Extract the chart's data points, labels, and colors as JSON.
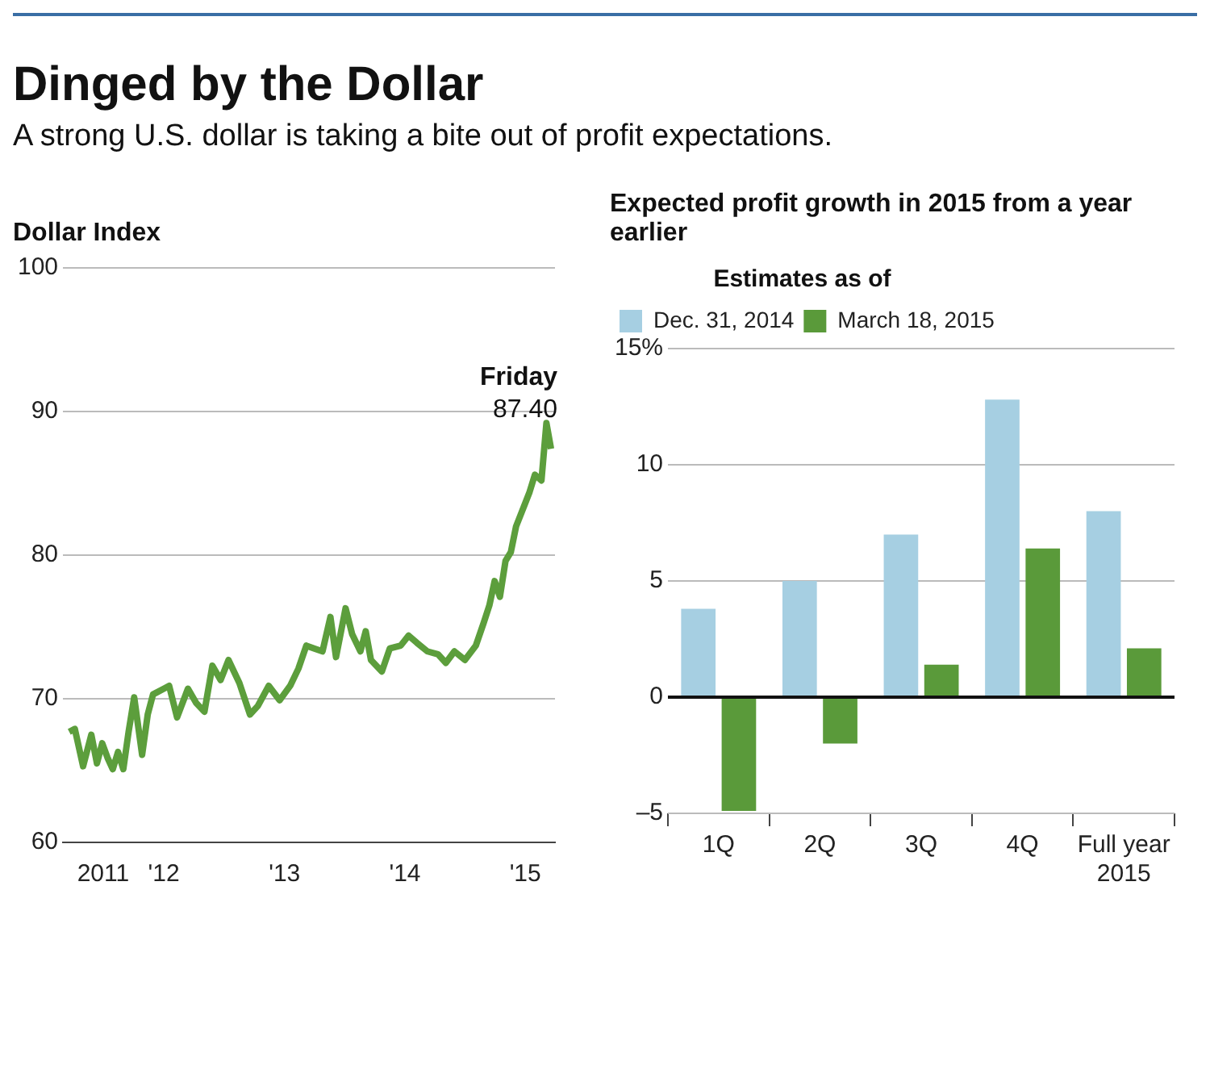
{
  "chart_data": [
    {
      "type": "line",
      "title": "Dinged by the Dollar",
      "subtitle": "A strong U.S. dollar is taking a bite out of profit expectations.",
      "ylabel": "Dollar Index",
      "xlim": [
        "2011-03-01",
        "2015-04-01"
      ],
      "xticks": [
        {
          "value": "2011-07-01",
          "label": "2011"
        },
        {
          "value": "2012-01-01",
          "label": "'12"
        },
        {
          "value": "2013-01-01",
          "label": "'13"
        },
        {
          "value": "2014-01-01",
          "label": "'14"
        },
        {
          "value": "2015-01-01",
          "label": "'15"
        }
      ],
      "ylim": [
        60,
        100
      ],
      "yticks": [
        60,
        70,
        80,
        90,
        100
      ],
      "grid": "y",
      "legend": false,
      "marker": "none",
      "line_style": "solid",
      "series": [
        {
          "color": "#5c9e3c",
          "x": [
            "2011-03-20",
            "2011-04-06",
            "2011-05-01",
            "2011-05-26",
            "2011-06-12",
            "2011-06-28",
            "2011-07-14",
            "2011-07-30",
            "2011-08-15",
            "2011-08-31",
            "2011-09-16",
            "2011-10-03",
            "2011-10-27",
            "2011-11-13",
            "2011-11-29",
            "2012-01-01",
            "2012-01-17",
            "2012-02-10",
            "2012-03-14",
            "2012-04-08",
            "2012-05-03",
            "2012-05-27",
            "2012-06-21",
            "2012-07-15",
            "2012-08-17",
            "2012-09-18",
            "2012-10-12",
            "2012-11-14",
            "2012-12-17",
            "2013-01-18",
            "2013-02-12",
            "2013-03-08",
            "2013-04-01",
            "2013-04-26",
            "2013-05-20",
            "2013-06-06",
            "2013-07-05",
            "2013-07-25",
            "2013-08-19",
            "2013-09-04",
            "2013-09-20",
            "2013-10-23",
            "2013-11-16",
            "2013-12-19",
            "2014-01-12",
            "2014-02-06",
            "2014-03-10",
            "2014-04-11",
            "2014-05-05",
            "2014-05-31",
            "2014-07-02",
            "2014-08-04",
            "2014-08-28",
            "2014-09-14",
            "2014-09-30",
            "2014-10-16",
            "2014-11-02",
            "2014-11-18",
            "2014-12-04",
            "2014-12-28",
            "2015-01-14",
            "2015-01-30",
            "2015-02-19",
            "2015-03-06",
            "2015-03-20"
          ],
          "values": [
            67.7,
            67.9,
            65.3,
            67.5,
            65.5,
            66.9,
            65.9,
            65.1,
            66.3,
            65.1,
            67.7,
            70.1,
            66.1,
            68.9,
            70.3,
            70.7,
            70.9,
            68.7,
            70.7,
            69.7,
            69.1,
            72.3,
            71.3,
            72.7,
            71.1,
            68.9,
            69.5,
            70.9,
            69.9,
            70.9,
            72.1,
            73.7,
            73.5,
            73.3,
            75.7,
            72.9,
            76.3,
            74.5,
            73.3,
            74.7,
            72.7,
            71.9,
            73.5,
            73.7,
            74.4,
            73.9,
            73.3,
            73.1,
            72.5,
            73.3,
            72.7,
            73.7,
            75.3,
            76.5,
            78.2,
            77.1,
            79.6,
            80.2,
            82.0,
            83.4,
            84.4,
            85.6,
            85.2,
            89.2,
            87.4
          ]
        }
      ],
      "annotations": [
        {
          "text": "Friday",
          "x": "2015-03-20",
          "y": 87.4
        },
        {
          "text": "87.40",
          "x": "2015-03-20",
          "y": 87.4
        }
      ]
    },
    {
      "type": "bar",
      "title": "Expected profit growth in 2015 from a year earlier",
      "legend_title": "Estimates as of",
      "legend": "top left",
      "categories": [
        "1Q",
        "2Q",
        "3Q",
        "4Q",
        "Full year 2015"
      ],
      "ylim": [
        -5,
        15
      ],
      "yticks": [
        {
          "value": -5,
          "label": "–5"
        },
        0,
        5,
        10,
        {
          "value": 15,
          "label": "15%"
        }
      ],
      "grid": "y",
      "series": [
        {
          "name": "Dec. 31, 2014",
          "color": "#a6cfe2",
          "values": [
            3.8,
            5.0,
            7.0,
            12.8,
            8.0
          ]
        },
        {
          "name": "March 18, 2015",
          "color": "#5a9a3a",
          "values": [
            -4.9,
            -2.0,
            1.4,
            6.4,
            2.1
          ]
        }
      ]
    }
  ]
}
